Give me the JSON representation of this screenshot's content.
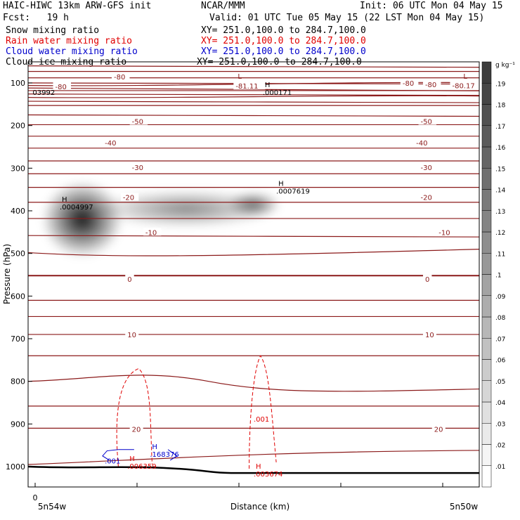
{
  "header": {
    "model_title": "HAIC-HIWC 13km ARW-GFS init",
    "org": "NCAR/MMM",
    "init": "Init: 06 UTC Mon 04 May 15",
    "fcst": "Fcst:   19 h",
    "valid": "Valid: 01 UTC Tue 05 May 15 (22 LST Mon 04 May 15)"
  },
  "fields": [
    {
      "label": "Snow mixing ratio",
      "xy": "XY= 251.0,100.0 to 284.7,100.0",
      "color": "#000000"
    },
    {
      "label": "Rain water mixing ratio",
      "xy": "XY= 251.0,100.0 to 284.7,100.0",
      "color": "#e00000"
    },
    {
      "label": "Cloud water mixing ratio",
      "xy": "XY= 251.0,100.0 to 284.7,100.0",
      "color": "#0000cc"
    },
    {
      "label": "Cloud ice mixing ratio",
      "xy": "XY= 251.0,100.0 to 284.7,100.0",
      "color": "#000000"
    }
  ],
  "chart_data": {
    "type": "heatmap",
    "ylabel": "Pressure (hPa)",
    "xlabel": "Distance (km)",
    "x_origin_label": "0",
    "x_left_label": "5n54w",
    "x_right_label": "5n50w",
    "ylim": [
      1050,
      50
    ],
    "y_ticks": [
      100,
      200,
      300,
      400,
      500,
      600,
      700,
      800,
      900,
      1000
    ],
    "colorbar": {
      "unit": "g kg⁻¹",
      "ticks": [
        ".01",
        ".02",
        ".03",
        ".04",
        ".05",
        ".06",
        ".07",
        ".08",
        ".09",
        ".1",
        ".11",
        ".12",
        ".13",
        ".14",
        ".15",
        ".16",
        ".17",
        ".18",
        ".19"
      ]
    },
    "isotherm_labels": [
      {
        "text": "-80",
        "x": 0.19,
        "p": 85
      },
      {
        "text": "-80",
        "x": 0.06,
        "p": 108
      },
      {
        "text": "-81.11",
        "x": 0.46,
        "p": 107
      },
      {
        "text": "-80",
        "x": 0.83,
        "p": 100
      },
      {
        "text": "-80",
        "x": 0.88,
        "p": 103
      },
      {
        "text": "-80.17",
        "x": 0.94,
        "p": 106
      },
      {
        "text": "-50",
        "x": 0.23,
        "p": 190
      },
      {
        "text": "-50",
        "x": 0.87,
        "p": 190
      },
      {
        "text": "-40",
        "x": 0.17,
        "p": 240
      },
      {
        "text": "-40",
        "x": 0.86,
        "p": 240
      },
      {
        "text": "-30",
        "x": 0.23,
        "p": 298
      },
      {
        "text": "-30",
        "x": 0.87,
        "p": 298
      },
      {
        "text": "-20",
        "x": 0.21,
        "p": 368
      },
      {
        "text": "-20",
        "x": 0.87,
        "p": 368
      },
      {
        "text": "-10",
        "x": 0.26,
        "p": 450
      },
      {
        "text": "-10",
        "x": 0.91,
        "p": 450
      },
      {
        "text": "0",
        "x": 0.22,
        "p": 560
      },
      {
        "text": "0",
        "x": 0.88,
        "p": 560
      },
      {
        "text": "10",
        "x": 0.22,
        "p": 690
      },
      {
        "text": "10",
        "x": 0.88,
        "p": 690
      },
      {
        "text": "20",
        "x": 0.23,
        "p": 912
      },
      {
        "text": "20",
        "x": 0.9,
        "p": 912
      }
    ],
    "extrema": [
      {
        "mark": "L",
        "value": "",
        "x": 0.46,
        "p": 93,
        "color": "#8b1a1a"
      },
      {
        "mark": "L",
        "value": "",
        "x": 0.96,
        "p": 93,
        "color": "#8b1a1a"
      },
      {
        "mark": "",
        "value": "03992",
        "x": 0.01,
        "p": 113,
        "color": "#000000"
      },
      {
        "mark": "H",
        "value": ".000171",
        "x": 0.52,
        "p": 113,
        "color": "#000000"
      },
      {
        "mark": "H",
        "value": ".0007619",
        "x": 0.55,
        "p": 345,
        "color": "#000000"
      },
      {
        "mark": "H",
        "value": ".0004997",
        "x": 0.07,
        "p": 382,
        "color": "#000000"
      },
      {
        "mark": "H",
        "value": ".168376",
        "x": 0.27,
        "p": 962,
        "color": "#0000cc"
      },
      {
        "mark": "",
        "value": ".001",
        "x": 0.17,
        "p": 978,
        "color": "#0000cc"
      },
      {
        "mark": "H",
        "value": ".006359",
        "x": 0.22,
        "p": 990,
        "color": "#e00000"
      },
      {
        "mark": "",
        "value": ".001",
        "x": 0.5,
        "p": 880,
        "color": "#e00000"
      },
      {
        "mark": "H",
        "value": ".003674",
        "x": 0.5,
        "p": 1008,
        "color": "#e00000"
      }
    ],
    "snow_blobs": [
      {
        "x": 0.12,
        "p": 420,
        "rx": 0.09,
        "rp": 90,
        "peak": 0.19
      },
      {
        "x": 0.35,
        "p": 395,
        "rx": 0.2,
        "rp": 45,
        "peak": 0.06
      },
      {
        "x": 0.5,
        "p": 385,
        "rx": 0.06,
        "rp": 30,
        "peak": 0.09
      }
    ],
    "colors": {
      "isotherm": "#8b1a1a",
      "rain": "#e00000",
      "cloud_water": "#0000cc",
      "terrain": "#000000"
    }
  }
}
